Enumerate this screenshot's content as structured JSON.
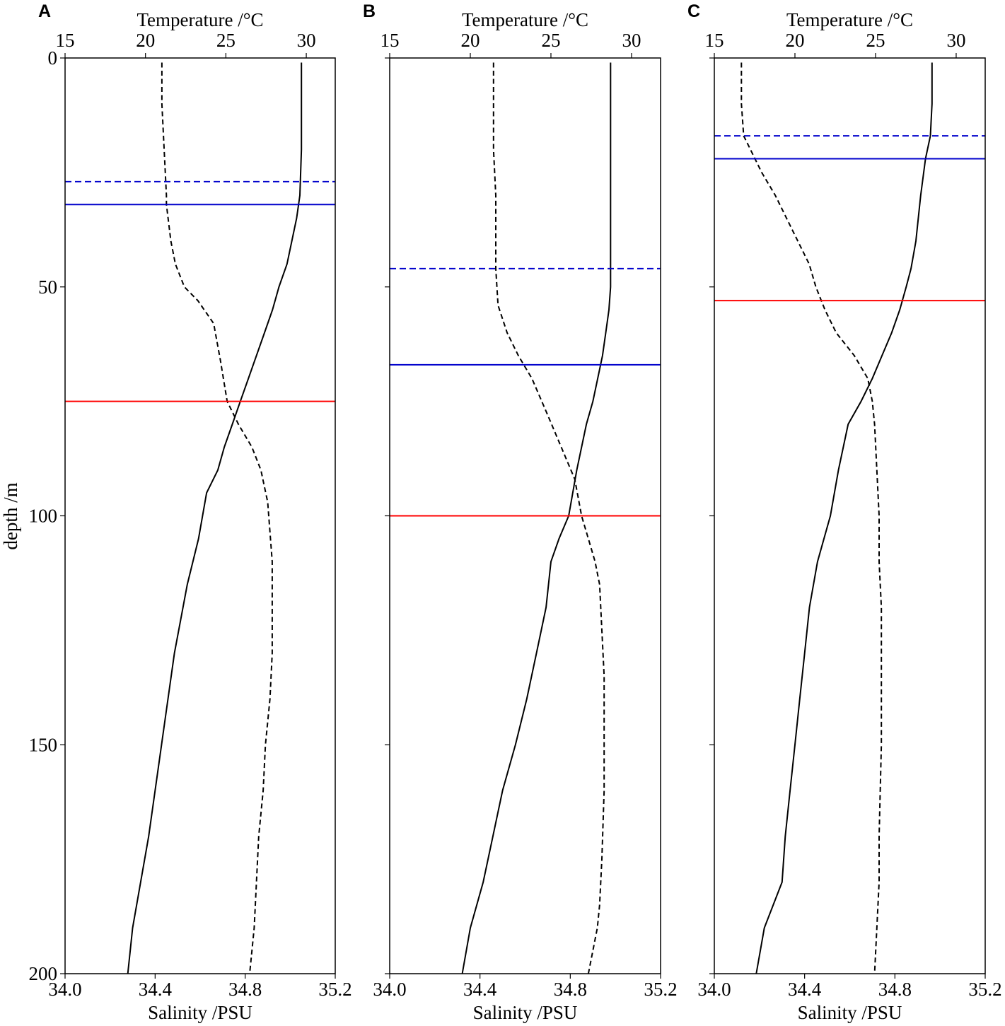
{
  "figure": {
    "ylabel": "depth /m",
    "top_axis_label": "Temperature /°C",
    "bottom_axis_label": "Salinity /PSU",
    "colors": {
      "profile": "#000000",
      "dashed_marker": "#0000cc",
      "solid_marker": "#0000cc",
      "red_marker": "#ff0000"
    }
  },
  "chart_data": [
    {
      "type": "line",
      "panel": "A",
      "ylabel": "depth /m",
      "ylim": [
        200,
        0
      ],
      "yticks": [
        0,
        50,
        100,
        150,
        200
      ],
      "x_top": {
        "label": "Temperature /°C",
        "lim": [
          15,
          31.8
        ],
        "ticks": [
          15,
          20,
          25,
          30
        ]
      },
      "x_bottom": {
        "label": "Salinity /PSU",
        "lim": [
          34.0,
          35.2
        ],
        "ticks": [
          "34.0",
          "34.4",
          "34.8",
          "35.2"
        ]
      },
      "series": [
        {
          "axis": "top",
          "style": "solid",
          "color": "#000000",
          "x": [
            29.7,
            29.7,
            29.7,
            29.6,
            29.4,
            29.1,
            28.8,
            28.3,
            27.9,
            27.4,
            26.9,
            26.4,
            25.9,
            25.4,
            24.9,
            24.5,
            23.8,
            23.3,
            22.6,
            21.8,
            21.0,
            20.2,
            19.2,
            18.9
          ],
          "y": [
            1,
            10,
            20,
            30,
            35,
            40,
            45,
            50,
            55,
            60,
            65,
            70,
            75,
            80,
            85,
            90,
            95,
            105,
            115,
            130,
            150,
            170,
            190,
            200
          ]
        },
        {
          "axis": "bottom",
          "style": "dashed",
          "color": "#000000",
          "x": [
            34.43,
            34.43,
            34.44,
            34.45,
            34.45,
            34.47,
            34.49,
            34.53,
            34.59,
            34.66,
            34.69,
            34.72,
            34.77,
            34.83,
            34.87,
            34.9,
            34.92,
            34.92,
            34.91,
            34.89,
            34.88,
            34.86,
            34.84,
            34.82
          ],
          "y": [
            1,
            10,
            20,
            30,
            32,
            40,
            45,
            50,
            53,
            58,
            66,
            75,
            80,
            85,
            90,
            97,
            110,
            130,
            140,
            150,
            160,
            170,
            190,
            200
          ]
        }
      ],
      "hlines": [
        {
          "depth": 27,
          "style": "dashed",
          "color": "#0000cc"
        },
        {
          "depth": 32,
          "style": "solid",
          "color": "#0000cc"
        },
        {
          "depth": 75,
          "style": "solid",
          "color": "#ff0000"
        }
      ]
    },
    {
      "type": "line",
      "panel": "B",
      "ylim": [
        200,
        0
      ],
      "yticks": [
        0,
        50,
        100,
        150,
        200
      ],
      "x_top": {
        "label": "Temperature /°C",
        "lim": [
          15,
          31.8
        ],
        "ticks": [
          15,
          20,
          25,
          30
        ]
      },
      "x_bottom": {
        "label": "Salinity /PSU",
        "lim": [
          34.0,
          35.2
        ],
        "ticks": [
          "34.0",
          "34.4",
          "34.8",
          "35.2"
        ]
      },
      "series": [
        {
          "axis": "top",
          "style": "solid",
          "color": "#000000",
          "x": [
            28.7,
            28.7,
            28.7,
            28.7,
            28.7,
            28.7,
            28.6,
            28.4,
            28.2,
            27.9,
            27.6,
            27.2,
            26.6,
            26.1,
            25.5,
            25.0,
            24.7,
            24.1,
            23.5,
            22.8,
            22.0,
            21.4,
            20.8,
            20.0,
            19.5
          ],
          "y": [
            1,
            10,
            20,
            30,
            40,
            50,
            55,
            60,
            65,
            70,
            75,
            80,
            90,
            100,
            105,
            110,
            120,
            130,
            140,
            150,
            160,
            170,
            180,
            190,
            200
          ]
        },
        {
          "axis": "bottom",
          "style": "dashed",
          "color": "#000000",
          "x": [
            34.46,
            34.46,
            34.46,
            34.47,
            34.47,
            34.47,
            34.48,
            34.52,
            34.57,
            34.63,
            34.7,
            34.76,
            34.82,
            34.85,
            34.88,
            34.91,
            34.93,
            34.94,
            34.95,
            34.95,
            34.95,
            34.95,
            34.94,
            34.93,
            34.92,
            34.88
          ],
          "y": [
            1,
            10,
            20,
            30,
            40,
            46,
            54,
            60,
            65,
            70,
            78,
            85,
            92,
            100,
            105,
            110,
            115,
            125,
            135,
            140,
            150,
            160,
            175,
            185,
            190,
            200
          ]
        }
      ],
      "hlines": [
        {
          "depth": 46,
          "style": "dashed",
          "color": "#0000cc"
        },
        {
          "depth": 67,
          "style": "solid",
          "color": "#0000cc"
        },
        {
          "depth": 100,
          "style": "solid",
          "color": "#ff0000"
        }
      ]
    },
    {
      "type": "line",
      "panel": "C",
      "ylim": [
        200,
        0
      ],
      "yticks": [
        0,
        50,
        100,
        150,
        200
      ],
      "x_top": {
        "label": "Temperature /°C",
        "lim": [
          15,
          31.8
        ],
        "ticks": [
          15,
          20,
          25,
          30
        ]
      },
      "x_bottom": {
        "label": "Salinity /PSU",
        "lim": [
          34.0,
          35.2
        ],
        "ticks": [
          "34.0",
          "34.4",
          "34.8",
          "35.2"
        ]
      },
      "series": [
        {
          "axis": "top",
          "style": "solid",
          "color": "#000000",
          "x": [
            28.5,
            28.5,
            28.4,
            28.1,
            27.8,
            27.5,
            27.2,
            26.9,
            26.5,
            26.0,
            25.4,
            24.8,
            24.1,
            23.3,
            22.7,
            22.2,
            21.4,
            20.9,
            20.6,
            20.3,
            20.0,
            19.7,
            19.4,
            19.2,
            18.1,
            17.6
          ],
          "y": [
            1,
            10,
            17,
            22,
            30,
            40,
            46,
            50,
            55,
            60,
            65,
            70,
            75,
            80,
            90,
            100,
            110,
            120,
            130,
            140,
            150,
            160,
            170,
            180,
            190,
            200
          ]
        },
        {
          "axis": "bottom",
          "style": "dashed",
          "color": "#000000",
          "x": [
            34.12,
            34.12,
            34.13,
            34.16,
            34.21,
            34.27,
            34.32,
            34.37,
            34.42,
            34.45,
            34.49,
            34.54,
            34.62,
            34.68,
            34.7,
            34.71,
            34.72,
            34.73,
            34.73,
            34.74,
            34.74,
            34.74,
            34.73,
            34.73,
            34.72,
            34.71
          ],
          "y": [
            1,
            10,
            17,
            20,
            25,
            30,
            35,
            40,
            45,
            50,
            55,
            60,
            65,
            70,
            75,
            80,
            90,
            100,
            110,
            120,
            130,
            150,
            170,
            180,
            190,
            200
          ]
        }
      ],
      "hlines": [
        {
          "depth": 17,
          "style": "dashed",
          "color": "#0000cc"
        },
        {
          "depth": 22,
          "style": "solid",
          "color": "#0000cc"
        },
        {
          "depth": 53,
          "style": "solid",
          "color": "#ff0000"
        }
      ]
    }
  ]
}
